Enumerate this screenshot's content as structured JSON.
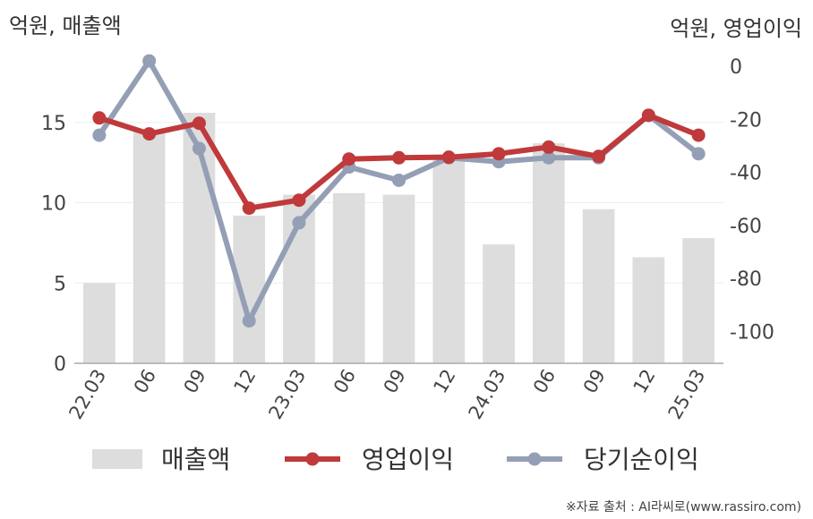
{
  "chart_data": {
    "type": "bar+line",
    "left_axis_unit": "억원, 매출액",
    "right_axis_unit": "억원, 영업이익",
    "categories": [
      "22.03",
      "06",
      "09",
      "12",
      "23.03",
      "06",
      "09",
      "12",
      "24.03",
      "06",
      "09",
      "12",
      "25.03"
    ],
    "left_axis": {
      "ylim": [
        0,
        18.5
      ],
      "ticks": [
        "0",
        "5",
        "10",
        "15"
      ],
      "tick_values": [
        0,
        5,
        10,
        15
      ]
    },
    "right_axis": {
      "ylim": [
        -112,
        0
      ],
      "ticks": [
        "0",
        "-20",
        "-40",
        "-60",
        "-80",
        "-100"
      ],
      "tick_values": [
        0,
        -20,
        -40,
        -60,
        -80,
        -100
      ]
    },
    "series": [
      {
        "name": "매출액",
        "type": "bar",
        "axis": "left",
        "color": "#dddddd",
        "values": [
          5.0,
          14.4,
          15.6,
          9.2,
          10.5,
          10.6,
          10.5,
          13.0,
          7.4,
          13.7,
          9.6,
          6.6,
          7.8
        ]
      },
      {
        "name": "영업이익",
        "type": "line",
        "axis": "right",
        "color": "#c0393b",
        "values": [
          -19.5,
          -25.5,
          -21.5,
          -53.5,
          -50.5,
          -35,
          -34.5,
          -34.3,
          -33,
          -30.5,
          -34,
          -18.5,
          -26
        ]
      },
      {
        "name": "당기순이익",
        "type": "line",
        "axis": "right",
        "color": "#949fb6",
        "values": [
          -26,
          2,
          -31,
          -96,
          -59,
          -38,
          -43,
          -34.5,
          -36,
          -34.5,
          -34.5,
          -18.5,
          -33
        ]
      }
    ],
    "legend": {
      "placement": "bottom",
      "items": [
        "매출액",
        "영업이익",
        "당기순이익"
      ]
    },
    "grid": true
  },
  "source": "※자료 출처 : AI라씨로(www.rassiro.com)"
}
